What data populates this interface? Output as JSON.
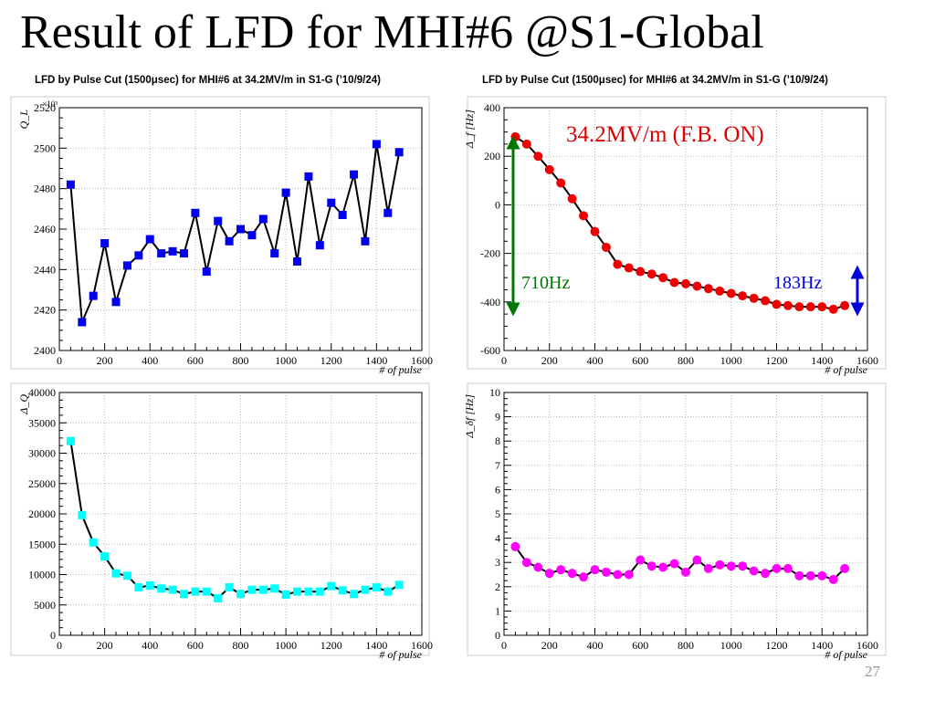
{
  "slide": {
    "title": "Result of LFD for MHI#6 @S1-Global",
    "page_number": "27",
    "panel_title_left": "LFD by Pulse Cut (1500μsec) for MHI#6 at 34.2MV/m in S1-G (’10/9/24)",
    "panel_title_right": "LFD by Pulse Cut (1500μsec) for MHI#6 at 34.2MV/m in S1-G (’10/9/24)"
  },
  "chart_data": [
    {
      "type": "line",
      "id": "q-loaded",
      "ylabel": "Q_L",
      "y_multiplier": "×10³",
      "xlabel": "# of pulse",
      "xlim": [
        0,
        1600
      ],
      "ylim": [
        2400,
        2520
      ],
      "x_ticks": [
        0,
        200,
        400,
        600,
        800,
        1000,
        1200,
        1400,
        1600
      ],
      "y_ticks": [
        2400,
        2420,
        2440,
        2460,
        2480,
        2500,
        2520
      ],
      "marker": "square",
      "color": "#0000ee",
      "grid": true,
      "x": [
        50,
        100,
        150,
        200,
        250,
        300,
        350,
        400,
        450,
        500,
        550,
        600,
        650,
        700,
        750,
        800,
        850,
        900,
        950,
        1000,
        1050,
        1100,
        1150,
        1200,
        1250,
        1300,
        1350,
        1400,
        1450,
        1500
      ],
      "y": [
        2482,
        2414,
        2427,
        2453,
        2424,
        2442,
        2447,
        2455,
        2448,
        2449,
        2448,
        2468,
        2439,
        2464,
        2454,
        2460,
        2457,
        2465,
        2448,
        2478,
        2444,
        2486,
        2452,
        2473,
        2467,
        2487,
        2454,
        2502,
        2468,
        2498
      ]
    },
    {
      "type": "line",
      "id": "delta-q",
      "ylabel": "Δ_Q",
      "xlabel": "# of pulse",
      "xlim": [
        0,
        1600
      ],
      "ylim": [
        0,
        40000
      ],
      "x_ticks": [
        0,
        200,
        400,
        600,
        800,
        1000,
        1200,
        1400,
        1600
      ],
      "y_ticks": [
        0,
        5000,
        10000,
        15000,
        20000,
        25000,
        30000,
        35000,
        40000
      ],
      "marker": "square",
      "color": "#00ffff",
      "grid": true,
      "x": [
        50,
        100,
        150,
        200,
        250,
        300,
        350,
        400,
        450,
        500,
        550,
        600,
        650,
        700,
        750,
        800,
        850,
        900,
        950,
        1000,
        1050,
        1100,
        1150,
        1200,
        1250,
        1300,
        1350,
        1400,
        1450,
        1500
      ],
      "y": [
        32000,
        19800,
        15300,
        13000,
        10200,
        9800,
        7900,
        8200,
        7700,
        7500,
        6800,
        7200,
        7200,
        6100,
        7900,
        6800,
        7500,
        7500,
        7700,
        6700,
        7200,
        7200,
        7200,
        8100,
        7400,
        6800,
        7500,
        7900,
        7200,
        8300
      ]
    },
    {
      "type": "line",
      "id": "delta-f",
      "ylabel": "Δ_f [Hz]",
      "xlabel": "# of pulse",
      "xlim": [
        0,
        1600
      ],
      "ylim": [
        -600,
        400
      ],
      "x_ticks": [
        0,
        200,
        400,
        600,
        800,
        1000,
        1200,
        1400,
        1600
      ],
      "y_ticks": [
        -600,
        -400,
        -200,
        0,
        200,
        400
      ],
      "marker": "circle",
      "color": "#ee0000",
      "grid": true,
      "annotations": {
        "condition": "34.2MV/m (F.B. ON)",
        "total_shift": "710Hz",
        "tail_shift": "183Hz"
      },
      "x": [
        50,
        100,
        150,
        200,
        250,
        300,
        350,
        400,
        450,
        500,
        550,
        600,
        650,
        700,
        750,
        800,
        850,
        900,
        950,
        1000,
        1050,
        1100,
        1150,
        1200,
        1250,
        1300,
        1350,
        1400,
        1450,
        1500
      ],
      "y": [
        280,
        250,
        200,
        145,
        90,
        25,
        -45,
        -110,
        -175,
        -245,
        -260,
        -275,
        -285,
        -300,
        -320,
        -325,
        -335,
        -345,
        -355,
        -365,
        -375,
        -385,
        -395,
        -410,
        -415,
        -420,
        -420,
        -420,
        -430,
        -415
      ]
    },
    {
      "type": "line",
      "id": "delta-df",
      "ylabel": "Δ_δf [Hz]",
      "xlabel": "# of pulse",
      "xlim": [
        0,
        1600
      ],
      "ylim": [
        0,
        10
      ],
      "x_ticks": [
        0,
        200,
        400,
        600,
        800,
        1000,
        1200,
        1400,
        1600
      ],
      "y_ticks": [
        0,
        1,
        2,
        3,
        4,
        5,
        6,
        7,
        8,
        9,
        10
      ],
      "marker": "circle",
      "color": "#ff00ff",
      "grid": true,
      "x": [
        50,
        100,
        150,
        200,
        250,
        300,
        350,
        400,
        450,
        500,
        550,
        600,
        650,
        700,
        750,
        800,
        850,
        900,
        950,
        1000,
        1050,
        1100,
        1150,
        1200,
        1250,
        1300,
        1350,
        1400,
        1450,
        1500
      ],
      "y": [
        3.65,
        3.0,
        2.8,
        2.55,
        2.7,
        2.55,
        2.4,
        2.7,
        2.6,
        2.5,
        2.5,
        3.1,
        2.85,
        2.8,
        2.95,
        2.6,
        3.1,
        2.75,
        2.9,
        2.85,
        2.85,
        2.65,
        2.55,
        2.75,
        2.75,
        2.45,
        2.45,
        2.45,
        2.3,
        2.75
      ]
    }
  ]
}
